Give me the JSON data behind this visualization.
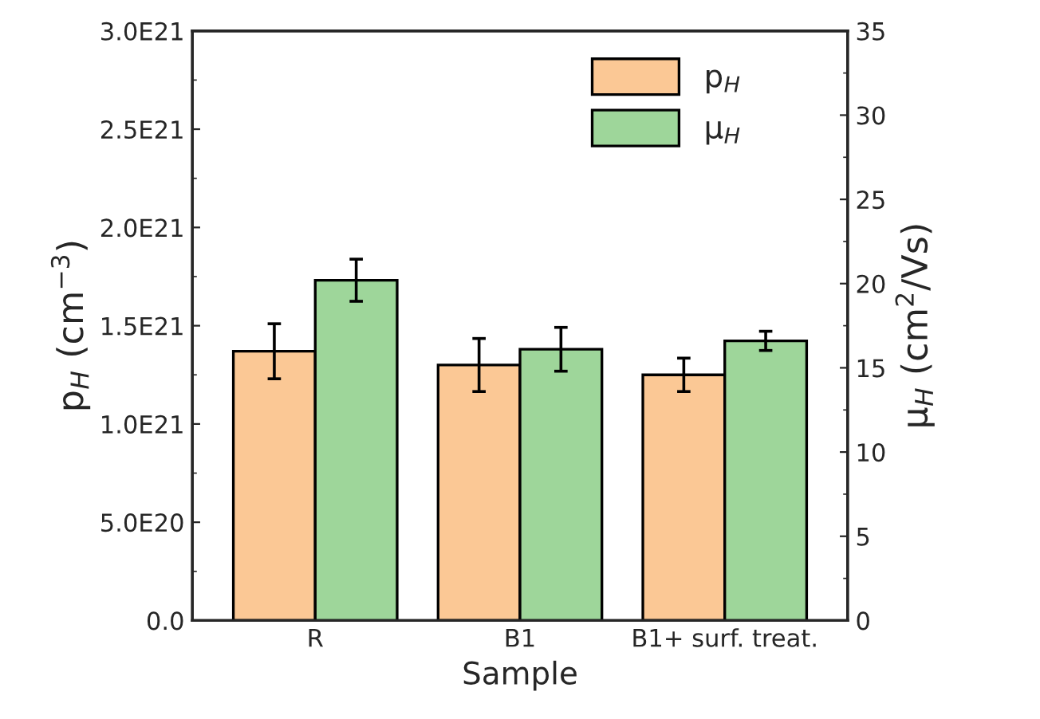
{
  "chart_data": {
    "type": "bar",
    "xlabel": "Sample",
    "ylabel": "p$_{H}$ (cm$^{−3}$)",
    "y2label": "μ$_{H}$ (cm$^{2}$/Vs)",
    "categories": [
      "R",
      "B1",
      "B1+ surf. treat."
    ],
    "series": [
      {
        "name": "p$_{H}$",
        "color": "#fbc895",
        "values": [
          1.37e+21,
          1.3e+21,
          1.25e+21
        ],
        "errors": [
          1.4e+20,
          1.35e+20,
          8.5e+19
        ]
      },
      {
        "name": "μ$_{H}$",
        "color": "#9ed69a",
        "values": [
          20.2,
          16.1,
          16.6
        ],
        "errors": [
          1.25,
          1.3,
          0.57
        ],
        "axis": "y2"
      }
    ],
    "ylim": [
      0,
      3e+21
    ],
    "yticks": [
      {
        "value": 0,
        "label": "0.0"
      },
      {
        "value": 5e+20,
        "label": "5.0E20"
      },
      {
        "value": 1e+21,
        "label": "1.0E21"
      },
      {
        "value": 1.5e+21,
        "label": "1.5E21"
      },
      {
        "value": 2e+21,
        "label": "2.0E21"
      },
      {
        "value": 2.5e+21,
        "label": "2.5E21"
      },
      {
        "value": 3e+21,
        "label": "3.0E21"
      }
    ],
    "y2lim": [
      0,
      35
    ],
    "y2ticks": [
      0,
      5,
      10,
      15,
      20,
      25,
      30,
      35
    ],
    "legend": "top right",
    "grid": false
  }
}
